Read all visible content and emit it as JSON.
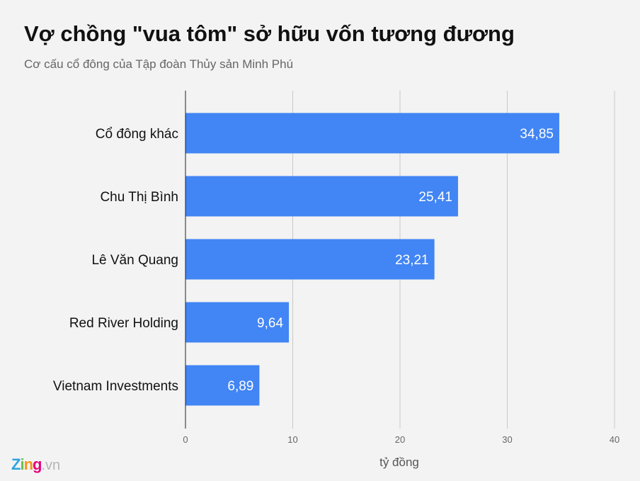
{
  "chart_data": {
    "type": "bar",
    "orientation": "horizontal",
    "title": "Vợ chồng \"vua tôm\" sở hữu vốn tương đương",
    "subtitle": "Cơ cấu cổ đông của Tập đoàn Thủy sản Minh Phú",
    "categories": [
      "Cổ đông khác",
      "Chu Thị Bình",
      "Lê Văn Quang",
      "Red River Holding",
      "Vietnam Investments"
    ],
    "values": [
      34.85,
      25.41,
      23.21,
      9.64,
      6.89
    ],
    "value_labels": [
      "34,85",
      "25,41",
      "23,21",
      "9,64",
      "6,89"
    ],
    "xlabel": "tỷ đồng",
    "ylabel": "",
    "xlim": [
      0,
      40
    ],
    "xticks": [
      0,
      10,
      20,
      30,
      40
    ],
    "grid": true,
    "bar_color": "#4285f4"
  },
  "logo": {
    "parts": [
      "Z",
      "i",
      "n",
      "g"
    ],
    "suffix": ".vn",
    "colors": [
      "#2ea3e3",
      "#6cc04a",
      "#f7941d",
      "#e6007e"
    ]
  }
}
